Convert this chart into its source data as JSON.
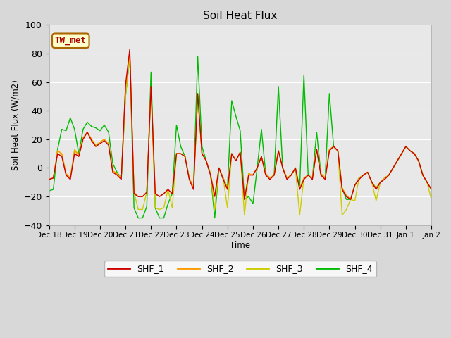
{
  "title": "Soil Heat Flux",
  "ylabel": "Soil Heat Flux (W/m2)",
  "xlabel": "Time",
  "annotation_text": "TW_met",
  "ylim": [
    -40,
    100
  ],
  "legend_entries": [
    "SHF_1",
    "SHF_2",
    "SHF_3",
    "SHF_4"
  ],
  "line_colors": [
    "#cc0000",
    "#ff9900",
    "#cccc00",
    "#00bb00"
  ],
  "xtick_labels": [
    "Dec 18",
    "Dec 19",
    "Dec 20",
    "Dec 21",
    "Dec 22",
    "Dec 23",
    "Dec 24",
    "Dec 25",
    "Dec 26",
    "Dec 27",
    "Dec 28",
    "Dec 29",
    "Dec 30",
    "Dec 31",
    "Jan 1",
    "Jan 2"
  ],
  "shf1": [
    -8,
    -7,
    10,
    8,
    -5,
    -8,
    10,
    8,
    20,
    25,
    19,
    15,
    17,
    19,
    16,
    -3,
    -5,
    -8,
    58,
    83,
    -18,
    -20,
    -20,
    -17,
    57,
    -18,
    -20,
    -18,
    -15,
    -18,
    10,
    10,
    8,
    -8,
    -15,
    52,
    10,
    5,
    -5,
    -20,
    0,
    -8,
    -15,
    10,
    5,
    11,
    -22,
    -5,
    -5,
    0,
    8,
    -5,
    -8,
    -5,
    12,
    0,
    -8,
    -5,
    0,
    -15,
    -8,
    -5,
    -8,
    13,
    -5,
    -8,
    12,
    15,
    12,
    -15,
    -20,
    -22,
    -12,
    -8,
    -5,
    -3,
    -10,
    -15,
    -10,
    -8,
    -5,
    0,
    5,
    10,
    15,
    12,
    10,
    5,
    -5,
    -10,
    -15
  ],
  "shf2": [
    -8,
    -7,
    12,
    10,
    -4,
    -7,
    12,
    9,
    21,
    25,
    20,
    15,
    18,
    20,
    17,
    -2,
    -4,
    -7,
    55,
    80,
    -17,
    -20,
    -20,
    -17,
    55,
    -18,
    -20,
    -18,
    -15,
    -18,
    10,
    10,
    8,
    -7,
    -14,
    51,
    10,
    5,
    -4,
    -19,
    0,
    -7,
    -14,
    10,
    5,
    11,
    -22,
    -4,
    -5,
    0,
    8,
    -4,
    -7,
    -5,
    12,
    0,
    -7,
    -5,
    0,
    -14,
    -7,
    -5,
    -7,
    13,
    -4,
    -7,
    13,
    15,
    12,
    -14,
    -19,
    -22,
    -12,
    -7,
    -5,
    -3,
    -10,
    -14,
    -10,
    -7,
    -5,
    0,
    5,
    10,
    15,
    12,
    10,
    5,
    -5,
    -10,
    -15
  ],
  "shf3": [
    -8,
    -7,
    12,
    10,
    -4,
    -7,
    13,
    9,
    21,
    25,
    20,
    16,
    18,
    20,
    17,
    -2,
    -4,
    -7,
    50,
    78,
    -17,
    -29,
    -29,
    -17,
    55,
    -28,
    -29,
    -28,
    -15,
    -28,
    10,
    10,
    8,
    -7,
    -14,
    50,
    10,
    5,
    -4,
    -29,
    0,
    -7,
    -28,
    10,
    5,
    11,
    -33,
    -4,
    -5,
    0,
    8,
    -4,
    -7,
    -5,
    12,
    0,
    -7,
    -5,
    0,
    -33,
    -7,
    -5,
    -7,
    13,
    -4,
    -7,
    13,
    15,
    12,
    -33,
    -29,
    -22,
    -23,
    -7,
    -5,
    -3,
    -10,
    -23,
    -10,
    -7,
    -5,
    0,
    5,
    10,
    15,
    12,
    10,
    5,
    -5,
    -10,
    -22
  ],
  "shf4": [
    -16,
    -15,
    13,
    27,
    26,
    35,
    27,
    10,
    27,
    32,
    29,
    28,
    26,
    30,
    25,
    3,
    -3,
    -7,
    50,
    78,
    -28,
    -35,
    -35,
    -27,
    67,
    -28,
    -35,
    -35,
    -25,
    -18,
    30,
    15,
    8,
    -7,
    -14,
    78,
    15,
    5,
    -4,
    -35,
    0,
    -7,
    -14,
    47,
    36,
    26,
    -22,
    -20,
    -25,
    0,
    27,
    -4,
    -7,
    -5,
    57,
    0,
    -7,
    -5,
    0,
    -14,
    65,
    -5,
    -7,
    25,
    -4,
    -7,
    52,
    15,
    12,
    -14,
    -22,
    -22,
    -12,
    -7,
    -5,
    -3,
    -10,
    -14,
    -10,
    -7,
    -5,
    0,
    5,
    10,
    15,
    12,
    10,
    5,
    -5,
    -10,
    -15
  ]
}
